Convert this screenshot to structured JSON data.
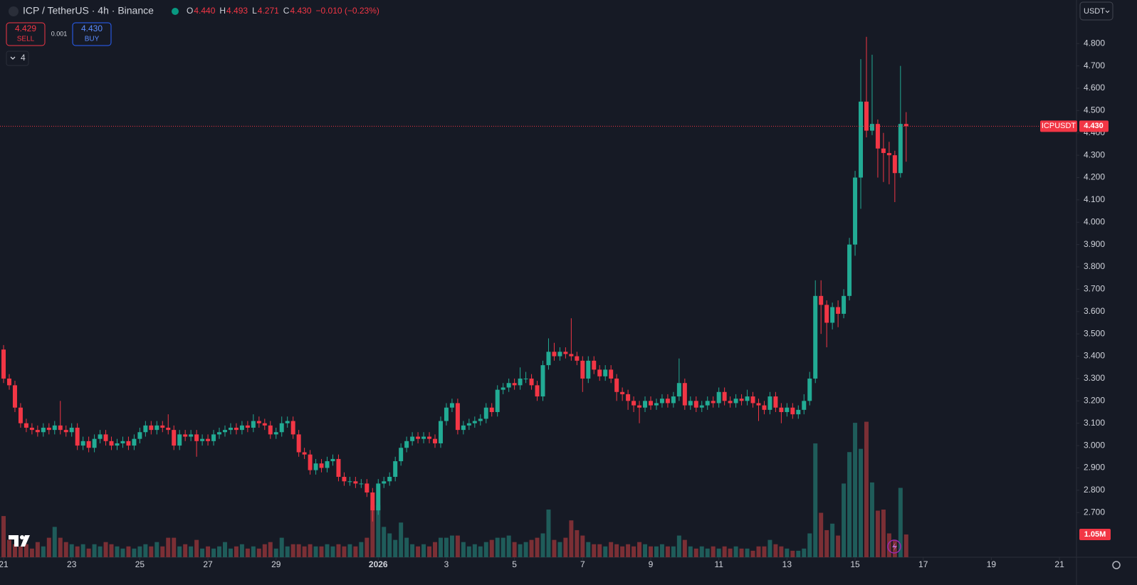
{
  "chart_data": {
    "type": "candlestick",
    "symbol_title": "ICP / TetherUS · 4h · Binance",
    "legend_values": [
      {
        "key": "O",
        "value": "4.440"
      },
      {
        "key": "H",
        "value": "4.493"
      },
      {
        "key": "L",
        "value": "4.271"
      },
      {
        "key": "C",
        "value": "4.430"
      }
    ],
    "change": "−0.010 (−0.23%)",
    "sell_price": "4.429",
    "sell_label": "SELL",
    "spread": "0.001",
    "buy_price": "4.430",
    "buy_label": "BUY",
    "indicator_count": "4",
    "currency": "USDT",
    "price_tag_name": "ICPUSDT",
    "last_price": 4.43,
    "last_price_label": "4.430",
    "volume_label": "1.05M",
    "up_color": "#22ab94",
    "down_color": "#f23645",
    "volume_up_color": "#1f5c5a",
    "volume_down_color": "#7b2f35",
    "xlim": [
      -0.63,
      189
    ],
    "xticks": [
      {
        "value": 0,
        "label": "21"
      },
      {
        "value": 12,
        "label": "23"
      },
      {
        "value": 24,
        "label": "25"
      },
      {
        "value": 36,
        "label": "27"
      },
      {
        "value": 48,
        "label": "29"
      },
      {
        "value": 66,
        "label": "2026"
      },
      {
        "value": 78,
        "label": "3"
      },
      {
        "value": 90,
        "label": "5"
      },
      {
        "value": 102,
        "label": "7"
      },
      {
        "value": 114,
        "label": "9"
      },
      {
        "value": 126,
        "label": "11"
      },
      {
        "value": 138,
        "label": "13"
      },
      {
        "value": 150,
        "label": "15"
      },
      {
        "value": 162,
        "label": "17"
      },
      {
        "value": 174,
        "label": "19"
      },
      {
        "value": 186,
        "label": "21"
      }
    ],
    "ylim": [
      2.5,
      4.995
    ],
    "yticks": [
      {
        "value": 4.8,
        "label": "4.800"
      },
      {
        "value": 4.7,
        "label": "4.700"
      },
      {
        "value": 4.6,
        "label": "4.600"
      },
      {
        "value": 4.5,
        "label": "4.500"
      },
      {
        "value": 4.4,
        "label": "4.400"
      },
      {
        "value": 4.3,
        "label": "4.300"
      },
      {
        "value": 4.2,
        "label": "4.200"
      },
      {
        "value": 4.1,
        "label": "4.100"
      },
      {
        "value": 4.0,
        "label": "4.000"
      },
      {
        "value": 3.9,
        "label": "3.900"
      },
      {
        "value": 3.8,
        "label": "3.800"
      },
      {
        "value": 3.7,
        "label": "3.700"
      },
      {
        "value": 3.6,
        "label": "3.600"
      },
      {
        "value": 3.5,
        "label": "3.500"
      },
      {
        "value": 3.4,
        "label": "3.400"
      },
      {
        "value": 3.3,
        "label": "3.300"
      },
      {
        "value": 3.2,
        "label": "3.200"
      },
      {
        "value": 3.1,
        "label": "3.100"
      },
      {
        "value": 3.0,
        "label": "3.000"
      },
      {
        "value": 2.9,
        "label": "2.900"
      },
      {
        "value": 2.8,
        "label": "2.800"
      },
      {
        "value": 2.7,
        "label": "2.700"
      }
    ],
    "volume_ylim": [
      0,
      25.7
    ],
    "candles": [
      [
        3.43,
        3.45,
        3.28,
        3.3
      ],
      [
        3.3,
        3.32,
        3.25,
        3.27
      ],
      [
        3.27,
        3.29,
        3.15,
        3.17
      ],
      [
        3.17,
        3.19,
        3.08,
        3.1
      ],
      [
        3.1,
        3.12,
        3.06,
        3.08
      ],
      [
        3.08,
        3.1,
        3.05,
        3.07
      ],
      [
        3.07,
        3.09,
        3.04,
        3.06
      ],
      [
        3.06,
        3.1,
        3.04,
        3.08
      ],
      [
        3.08,
        3.1,
        3.05,
        3.07
      ],
      [
        3.07,
        3.11,
        3.05,
        3.09
      ],
      [
        3.09,
        3.2,
        3.05,
        3.07
      ],
      [
        3.07,
        3.09,
        3.04,
        3.06
      ],
      [
        3.06,
        3.1,
        3.04,
        3.08
      ],
      [
        3.08,
        3.1,
        2.98,
        3.0
      ],
      [
        3.0,
        3.04,
        2.98,
        3.02
      ],
      [
        3.02,
        3.04,
        2.97,
        2.99
      ],
      [
        2.99,
        3.05,
        2.97,
        3.03
      ],
      [
        3.03,
        3.07,
        3.01,
        3.05
      ],
      [
        3.05,
        3.07,
        3.0,
        3.02
      ],
      [
        3.02,
        3.04,
        2.98,
        3.0
      ],
      [
        3.0,
        3.03,
        2.98,
        3.01
      ],
      [
        3.01,
        3.04,
        2.99,
        3.02
      ],
      [
        3.02,
        3.04,
        2.98,
        3.0
      ],
      [
        3.0,
        3.05,
        2.98,
        3.03
      ],
      [
        3.03,
        3.08,
        3.01,
        3.06
      ],
      [
        3.06,
        3.11,
        3.04,
        3.09
      ],
      [
        3.09,
        3.11,
        3.05,
        3.07
      ],
      [
        3.07,
        3.11,
        3.05,
        3.09
      ],
      [
        3.09,
        3.11,
        3.06,
        3.08
      ],
      [
        3.08,
        3.14,
        3.05,
        3.07
      ],
      [
        3.07,
        3.09,
        2.98,
        3.0
      ],
      [
        3.0,
        3.07,
        2.98,
        3.05
      ],
      [
        3.05,
        3.07,
        3.02,
        3.04
      ],
      [
        3.04,
        3.07,
        3.02,
        3.05
      ],
      [
        3.05,
        3.07,
        2.95,
        3.02
      ],
      [
        3.02,
        3.05,
        3.0,
        3.03
      ],
      [
        3.03,
        3.05,
        3.0,
        3.02
      ],
      [
        3.02,
        3.07,
        3.0,
        3.05
      ],
      [
        3.05,
        3.08,
        3.03,
        3.06
      ],
      [
        3.06,
        3.09,
        3.04,
        3.07
      ],
      [
        3.07,
        3.1,
        3.05,
        3.08
      ],
      [
        3.08,
        3.1,
        3.05,
        3.07
      ],
      [
        3.07,
        3.11,
        3.05,
        3.09
      ],
      [
        3.09,
        3.11,
        3.06,
        3.08
      ],
      [
        3.08,
        3.14,
        3.06,
        3.11
      ],
      [
        3.11,
        3.13,
        3.08,
        3.1
      ],
      [
        3.1,
        3.12,
        3.07,
        3.09
      ],
      [
        3.09,
        3.11,
        3.03,
        3.05
      ],
      [
        3.05,
        3.08,
        3.03,
        3.06
      ],
      [
        3.06,
        3.13,
        3.04,
        3.1
      ],
      [
        3.1,
        3.13,
        3.08,
        3.11
      ],
      [
        3.11,
        3.13,
        3.03,
        3.05
      ],
      [
        3.05,
        3.07,
        2.95,
        2.97
      ],
      [
        2.97,
        2.99,
        2.94,
        2.96
      ],
      [
        2.96,
        2.98,
        2.87,
        2.89
      ],
      [
        2.89,
        2.94,
        2.87,
        2.92
      ],
      [
        2.92,
        2.94,
        2.88,
        2.9
      ],
      [
        2.9,
        2.95,
        2.88,
        2.93
      ],
      [
        2.93,
        2.96,
        2.91,
        2.94
      ],
      [
        2.94,
        2.96,
        2.84,
        2.86
      ],
      [
        2.86,
        2.88,
        2.82,
        2.84
      ],
      [
        2.84,
        2.86,
        2.82,
        2.84
      ],
      [
        2.84,
        2.86,
        2.81,
        2.83
      ],
      [
        2.83,
        2.85,
        2.81,
        2.83
      ],
      [
        2.83,
        2.85,
        2.77,
        2.79
      ],
      [
        2.79,
        2.81,
        2.66,
        2.71
      ],
      [
        2.71,
        2.85,
        2.69,
        2.83
      ],
      [
        2.83,
        2.86,
        2.81,
        2.84
      ],
      [
        2.84,
        2.88,
        2.82,
        2.86
      ],
      [
        2.86,
        2.95,
        2.84,
        2.93
      ],
      [
        2.93,
        3.01,
        2.91,
        2.99
      ],
      [
        2.99,
        3.04,
        2.97,
        3.02
      ],
      [
        3.02,
        3.06,
        3.0,
        3.04
      ],
      [
        3.04,
        3.06,
        3.01,
        3.03
      ],
      [
        3.03,
        3.06,
        3.01,
        3.04
      ],
      [
        3.04,
        3.06,
        3.01,
        3.03
      ],
      [
        3.03,
        3.05,
        2.99,
        3.01
      ],
      [
        3.01,
        3.13,
        2.99,
        3.11
      ],
      [
        3.11,
        3.19,
        3.09,
        3.17
      ],
      [
        3.17,
        3.21,
        3.15,
        3.19
      ],
      [
        3.19,
        3.21,
        3.05,
        3.07
      ],
      [
        3.07,
        3.11,
        3.05,
        3.09
      ],
      [
        3.09,
        3.12,
        3.07,
        3.1
      ],
      [
        3.1,
        3.13,
        3.08,
        3.11
      ],
      [
        3.11,
        3.14,
        3.09,
        3.12
      ],
      [
        3.12,
        3.19,
        3.1,
        3.17
      ],
      [
        3.17,
        3.19,
        3.13,
        3.15
      ],
      [
        3.15,
        3.27,
        3.13,
        3.25
      ],
      [
        3.25,
        3.28,
        3.23,
        3.26
      ],
      [
        3.26,
        3.3,
        3.24,
        3.28
      ],
      [
        3.28,
        3.3,
        3.25,
        3.27
      ],
      [
        3.27,
        3.35,
        3.25,
        3.3
      ],
      [
        3.3,
        3.33,
        3.28,
        3.3
      ],
      [
        3.3,
        3.32,
        3.25,
        3.27
      ],
      [
        3.27,
        3.29,
        3.2,
        3.22
      ],
      [
        3.22,
        3.38,
        3.2,
        3.36
      ],
      [
        3.36,
        3.48,
        3.34,
        3.42
      ],
      [
        3.42,
        3.46,
        3.38,
        3.4
      ],
      [
        3.4,
        3.44,
        3.38,
        3.42
      ],
      [
        3.42,
        3.44,
        3.39,
        3.41
      ],
      [
        3.41,
        3.57,
        3.38,
        3.4
      ],
      [
        3.4,
        3.42,
        3.36,
        3.38
      ],
      [
        3.38,
        3.4,
        3.24,
        3.3
      ],
      [
        3.3,
        3.4,
        3.28,
        3.38
      ],
      [
        3.38,
        3.4,
        3.32,
        3.34
      ],
      [
        3.34,
        3.36,
        3.29,
        3.31
      ],
      [
        3.31,
        3.36,
        3.29,
        3.34
      ],
      [
        3.34,
        3.36,
        3.28,
        3.3
      ],
      [
        3.3,
        3.32,
        3.2,
        3.24
      ],
      [
        3.24,
        3.26,
        3.2,
        3.23
      ],
      [
        3.23,
        3.25,
        3.16,
        3.2
      ],
      [
        3.2,
        3.22,
        3.15,
        3.18
      ],
      [
        3.18,
        3.2,
        3.1,
        3.17
      ],
      [
        3.17,
        3.22,
        3.15,
        3.2
      ],
      [
        3.2,
        3.22,
        3.16,
        3.18
      ],
      [
        3.18,
        3.21,
        3.16,
        3.19
      ],
      [
        3.19,
        3.23,
        3.17,
        3.21
      ],
      [
        3.21,
        3.23,
        3.17,
        3.19
      ],
      [
        3.19,
        3.24,
        3.17,
        3.22
      ],
      [
        3.22,
        3.39,
        3.2,
        3.28
      ],
      [
        3.28,
        3.3,
        3.16,
        3.18
      ],
      [
        3.18,
        3.22,
        3.16,
        3.2
      ],
      [
        3.2,
        3.22,
        3.15,
        3.17
      ],
      [
        3.17,
        3.2,
        3.15,
        3.18
      ],
      [
        3.18,
        3.22,
        3.16,
        3.2
      ],
      [
        3.2,
        3.22,
        3.17,
        3.19
      ],
      [
        3.19,
        3.26,
        3.17,
        3.24
      ],
      [
        3.24,
        3.26,
        3.18,
        3.2
      ],
      [
        3.2,
        3.22,
        3.17,
        3.19
      ],
      [
        3.19,
        3.23,
        3.17,
        3.21
      ],
      [
        3.21,
        3.23,
        3.18,
        3.2
      ],
      [
        3.2,
        3.25,
        3.18,
        3.22
      ],
      [
        3.22,
        3.24,
        3.17,
        3.19
      ],
      [
        3.19,
        3.21,
        3.11,
        3.18
      ],
      [
        3.18,
        3.2,
        3.14,
        3.16
      ],
      [
        3.16,
        3.24,
        3.14,
        3.22
      ],
      [
        3.22,
        3.24,
        3.15,
        3.17
      ],
      [
        3.17,
        3.19,
        3.1,
        3.15
      ],
      [
        3.15,
        3.19,
        3.13,
        3.17
      ],
      [
        3.17,
        3.19,
        3.12,
        3.14
      ],
      [
        3.14,
        3.18,
        3.12,
        3.16
      ],
      [
        3.16,
        3.23,
        3.14,
        3.2
      ],
      [
        3.2,
        3.33,
        3.18,
        3.3
      ],
      [
        3.3,
        3.74,
        3.28,
        3.67
      ],
      [
        3.67,
        3.74,
        3.5,
        3.63
      ],
      [
        3.63,
        3.65,
        3.44,
        3.55
      ],
      [
        3.55,
        3.64,
        3.52,
        3.62
      ],
      [
        3.62,
        3.65,
        3.53,
        3.59
      ],
      [
        3.59,
        3.7,
        3.57,
        3.67
      ],
      [
        3.67,
        3.93,
        3.65,
        3.9
      ],
      [
        3.9,
        4.23,
        3.85,
        4.2
      ],
      [
        4.2,
        4.73,
        4.06,
        4.54
      ],
      [
        4.54,
        4.83,
        4.38,
        4.41
      ],
      [
        4.41,
        4.75,
        4.39,
        4.44
      ],
      [
        4.44,
        4.46,
        4.2,
        4.33
      ],
      [
        4.33,
        4.4,
        4.18,
        4.31
      ],
      [
        4.31,
        4.36,
        4.17,
        4.3
      ],
      [
        4.3,
        4.32,
        4.09,
        4.22
      ],
      [
        4.22,
        4.7,
        4.2,
        4.44
      ],
      [
        4.44,
        4.493,
        4.271,
        4.43
      ]
    ],
    "volume": [
      1.9,
      0.8,
      0.6,
      0.5,
      0.6,
      0.4,
      0.7,
      0.5,
      0.9,
      1.4,
      0.9,
      0.7,
      0.6,
      0.5,
      0.6,
      0.4,
      0.6,
      0.5,
      0.7,
      0.6,
      0.5,
      0.4,
      0.5,
      0.4,
      0.5,
      0.6,
      0.5,
      0.7,
      0.5,
      0.9,
      0.9,
      0.5,
      0.6,
      0.5,
      0.8,
      0.4,
      0.5,
      0.4,
      0.5,
      0.7,
      0.4,
      0.5,
      0.6,
      0.4,
      0.5,
      0.4,
      0.6,
      0.7,
      0.4,
      0.9,
      0.5,
      0.6,
      0.6,
      0.5,
      0.6,
      0.5,
      0.5,
      0.6,
      0.5,
      0.6,
      0.5,
      0.6,
      0.5,
      0.7,
      0.9,
      2.4,
      2.4,
      1.4,
      1.1,
      0.8,
      1.6,
      0.9,
      0.6,
      0.5,
      0.6,
      0.5,
      0.7,
      0.9,
      0.9,
      1.0,
      1.0,
      0.7,
      0.5,
      0.6,
      0.5,
      0.7,
      0.8,
      0.9,
      0.9,
      1.0,
      0.7,
      0.6,
      0.7,
      0.8,
      0.9,
      1.1,
      2.2,
      0.8,
      0.7,
      0.9,
      1.7,
      1.25,
      1.0,
      0.7,
      0.6,
      0.6,
      0.5,
      0.7,
      0.6,
      0.5,
      0.6,
      0.5,
      0.7,
      0.6,
      0.5,
      0.5,
      0.6,
      0.5,
      0.5,
      1.0,
      0.8,
      0.5,
      0.4,
      0.5,
      0.4,
      0.5,
      0.4,
      0.5,
      0.4,
      0.5,
      0.4,
      0.4,
      0.3,
      0.5,
      0.5,
      0.8,
      0.6,
      0.5,
      0.4,
      0.3,
      0.3,
      0.4,
      1.1,
      5.25,
      2.05,
      1.25,
      1.55,
      1.0,
      3.4,
      4.85,
      6.2,
      5.0,
      6.25,
      3.45,
      2.15,
      2.2,
      1.1,
      0.8,
      3.2,
      1.05
    ]
  }
}
